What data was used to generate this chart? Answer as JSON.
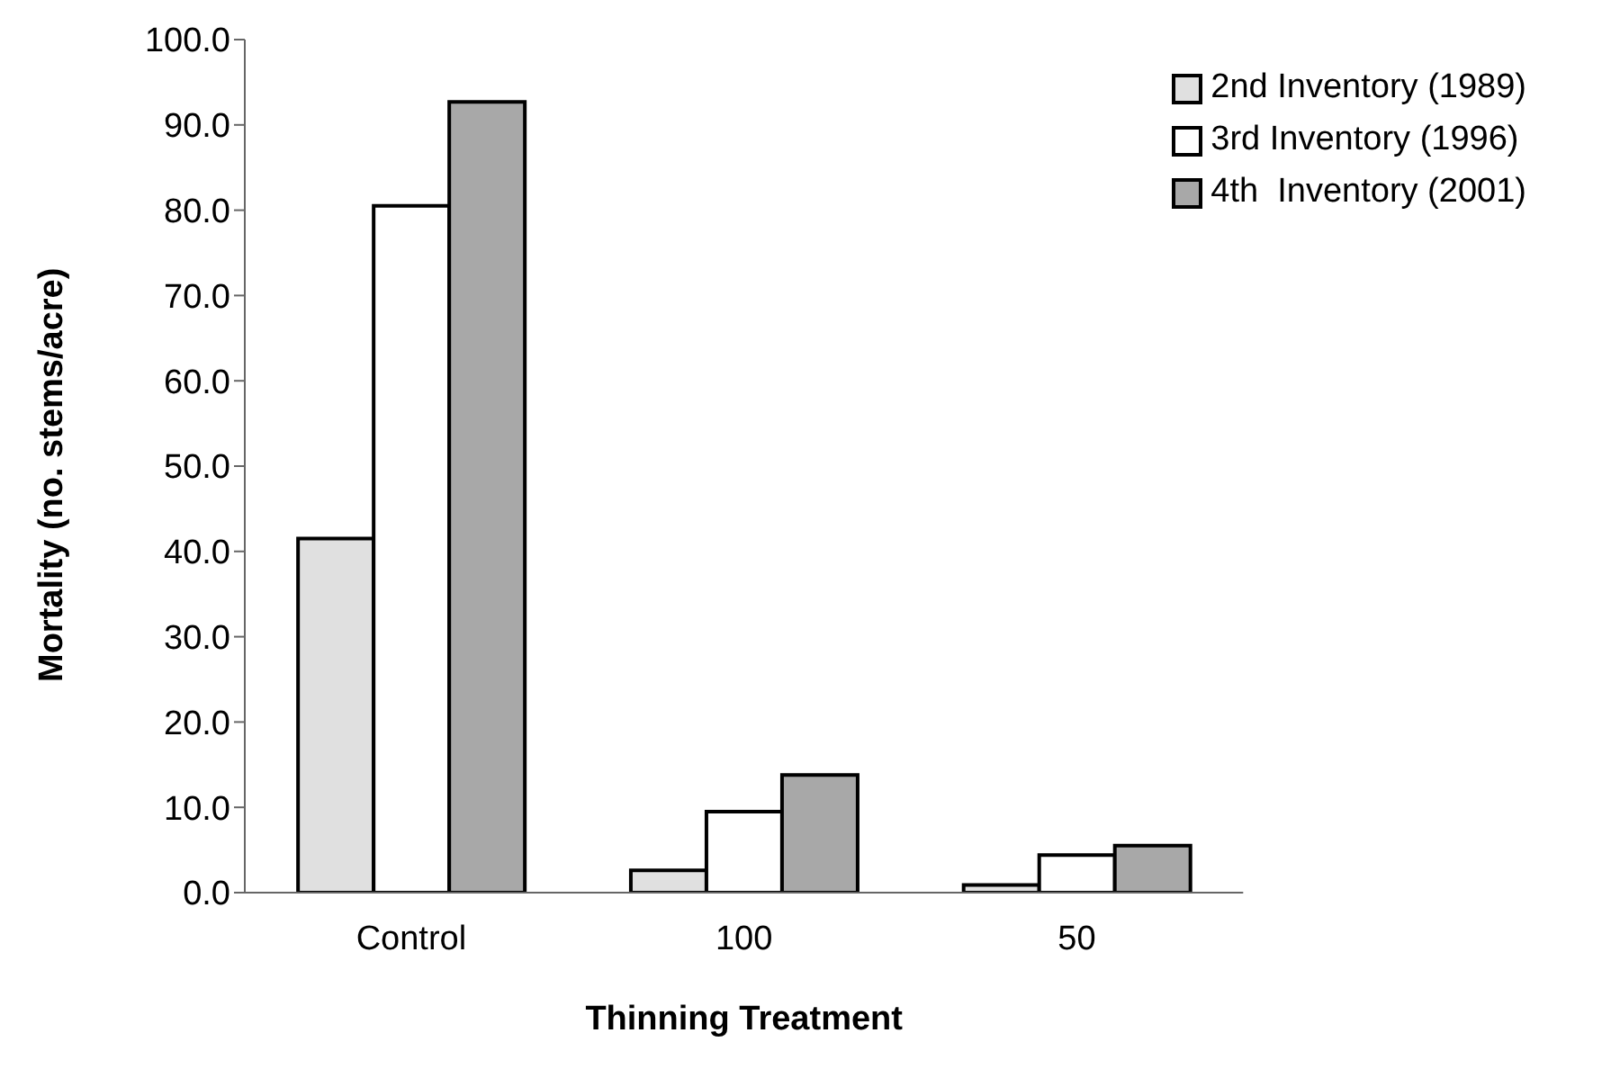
{
  "chart_data": {
    "type": "bar",
    "xlabel": "Thinning Treatment",
    "ylabel": "Mortality (no. stems/acre)",
    "categories": [
      "Control",
      "100",
      "50"
    ],
    "series": [
      {
        "name": "2nd Inventory (1989)",
        "color": "#e0e0e0",
        "values": [
          41.5,
          2.6,
          0.9
        ]
      },
      {
        "name": "3rd Inventory (1996)",
        "color": "#ffffff",
        "values": [
          80.5,
          9.5,
          4.4
        ]
      },
      {
        "name": "4th  Inventory (2001)",
        "color": "#a8a8a8",
        "values": [
          92.7,
          13.8,
          5.5
        ]
      }
    ],
    "ylim": [
      0,
      100
    ],
    "yticks": [
      {
        "value": 0,
        "label": "0.0"
      },
      {
        "value": 10,
        "label": "10.0"
      },
      {
        "value": 20,
        "label": "20.0"
      },
      {
        "value": 30,
        "label": "30.0"
      },
      {
        "value": 40,
        "label": "40.0"
      },
      {
        "value": 50,
        "label": "50.0"
      },
      {
        "value": 60,
        "label": "60.0"
      },
      {
        "value": 70,
        "label": "70.0"
      },
      {
        "value": 80,
        "label": "80.0"
      },
      {
        "value": 90,
        "label": "90.0"
      },
      {
        "value": 100,
        "label": "100.0"
      }
    ],
    "grid": false,
    "legend": "top right"
  }
}
